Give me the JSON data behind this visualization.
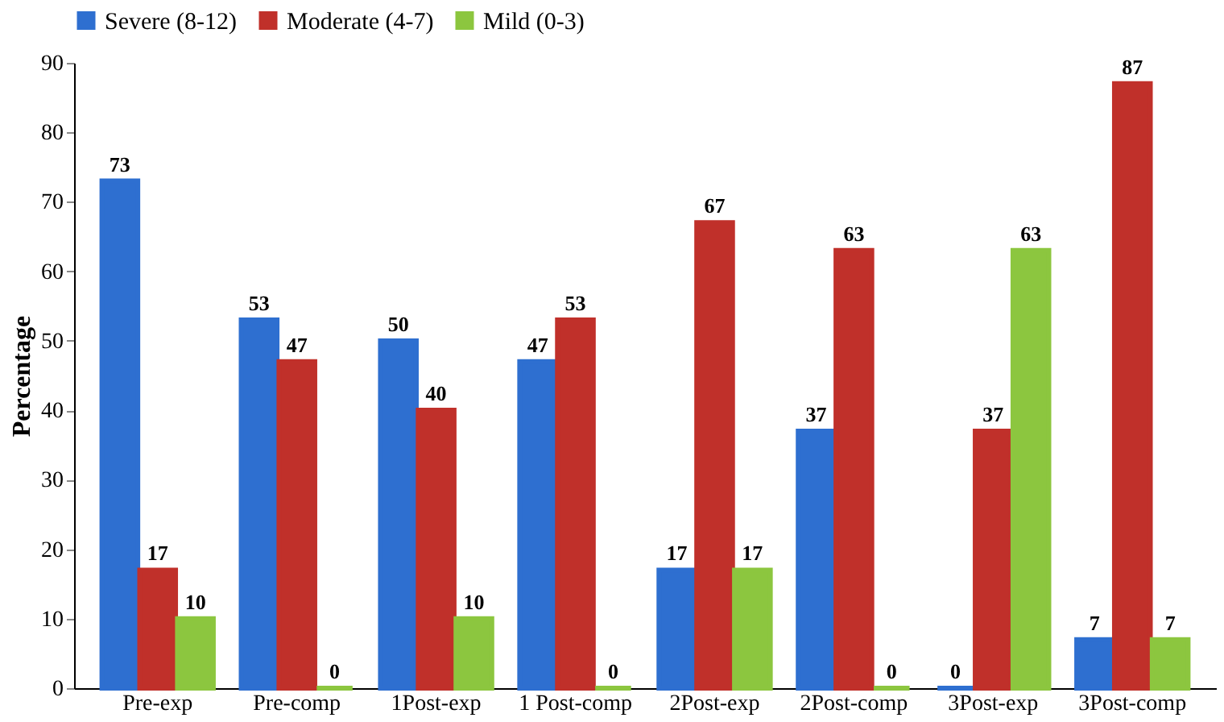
{
  "chart_data": {
    "type": "bar",
    "ylabel": "Percentage",
    "categories": [
      "Pre-exp",
      "Pre-comp",
      "1Post-exp",
      "1 Post-comp",
      "2Post-exp",
      "2Post-comp",
      "3Post-exp",
      "3Post-comp"
    ],
    "series": [
      {
        "name": "Severe (8-12)",
        "color": "#2e6fd0",
        "values": [
          73,
          53,
          50,
          47,
          17,
          37,
          0,
          7
        ]
      },
      {
        "name": "Moderate (4-7)",
        "color": "#c0302a",
        "values": [
          17,
          47,
          40,
          53,
          67,
          63,
          37,
          87
        ]
      },
      {
        "name": "Mild (0-3)",
        "color": "#8cc63f",
        "values": [
          10,
          0,
          10,
          0,
          17,
          0,
          63,
          7
        ]
      }
    ],
    "ylim": [
      0,
      90
    ],
    "yticks": [
      0,
      10,
      20,
      30,
      40,
      50,
      60,
      70,
      80,
      90
    ],
    "data_labels": true,
    "legend": "top",
    "grid": false
  }
}
